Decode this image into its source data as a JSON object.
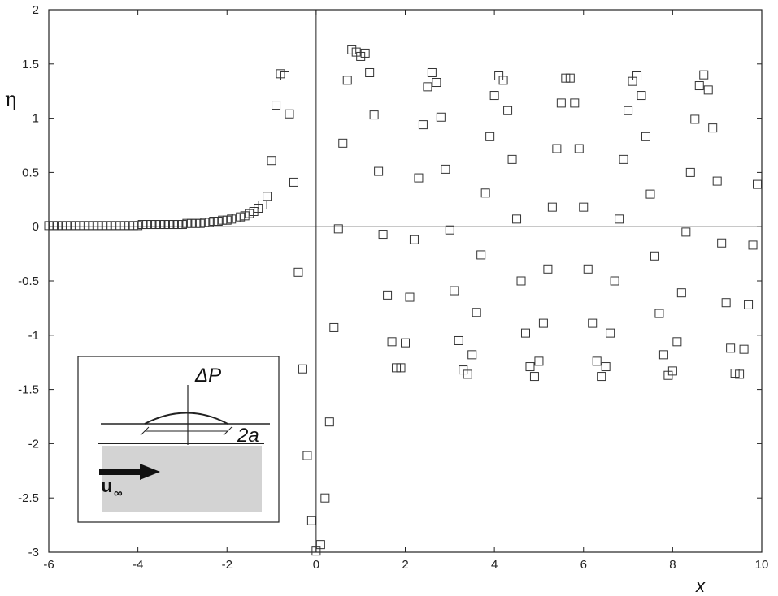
{
  "chart_data": {
    "type": "scatter",
    "xlabel": "x",
    "ylabel": "η",
    "xlim": [
      -6,
      10
    ],
    "ylim": [
      -3,
      2
    ],
    "xticks": [
      -6,
      -4,
      -2,
      0,
      2,
      4,
      6,
      8,
      10
    ],
    "yticks": [
      -3,
      -2.5,
      -2,
      -1.5,
      -1,
      -0.5,
      0,
      0.5,
      1,
      1.5,
      2
    ],
    "xtick_labels": [
      "-6",
      "-4",
      "-2",
      "0",
      "2",
      "4",
      "6",
      "8",
      "10"
    ],
    "ytick_labels": [
      "-3",
      "-2.5",
      "-2",
      "-1.5",
      "-1",
      "-0.5",
      "0",
      "0.5",
      "1",
      "1.5",
      "2"
    ],
    "grid": false,
    "reference_lines": {
      "x": 0,
      "y": 0
    },
    "marker": "square",
    "points": [
      [
        -6.0,
        0.01
      ],
      [
        -5.9,
        0.01
      ],
      [
        -5.8,
        0.01
      ],
      [
        -5.7,
        0.01
      ],
      [
        -5.6,
        0.01
      ],
      [
        -5.5,
        0.01
      ],
      [
        -5.4,
        0.01
      ],
      [
        -5.3,
        0.01
      ],
      [
        -5.2,
        0.01
      ],
      [
        -5.1,
        0.01
      ],
      [
        -5.0,
        0.01
      ],
      [
        -4.9,
        0.01
      ],
      [
        -4.8,
        0.01
      ],
      [
        -4.7,
        0.01
      ],
      [
        -4.6,
        0.01
      ],
      [
        -4.5,
        0.01
      ],
      [
        -4.4,
        0.01
      ],
      [
        -4.3,
        0.01
      ],
      [
        -4.2,
        0.01
      ],
      [
        -4.1,
        0.01
      ],
      [
        -4.0,
        0.01
      ],
      [
        -3.9,
        0.02
      ],
      [
        -3.8,
        0.02
      ],
      [
        -3.7,
        0.02
      ],
      [
        -3.6,
        0.02
      ],
      [
        -3.5,
        0.02
      ],
      [
        -3.4,
        0.02
      ],
      [
        -3.3,
        0.02
      ],
      [
        -3.2,
        0.02
      ],
      [
        -3.1,
        0.02
      ],
      [
        -3.0,
        0.02
      ],
      [
        -2.9,
        0.03
      ],
      [
        -2.8,
        0.03
      ],
      [
        -2.7,
        0.03
      ],
      [
        -2.6,
        0.03
      ],
      [
        -2.5,
        0.04
      ],
      [
        -2.4,
        0.04
      ],
      [
        -2.3,
        0.05
      ],
      [
        -2.2,
        0.05
      ],
      [
        -2.1,
        0.06
      ],
      [
        -2.0,
        0.06
      ],
      [
        -1.9,
        0.07
      ],
      [
        -1.8,
        0.08
      ],
      [
        -1.7,
        0.09
      ],
      [
        -1.6,
        0.1
      ],
      [
        -1.5,
        0.12
      ],
      [
        -1.4,
        0.14
      ],
      [
        -1.3,
        0.17
      ],
      [
        -1.2,
        0.2
      ],
      [
        -1.1,
        0.28
      ],
      [
        -1.0,
        0.61
      ],
      [
        -0.9,
        1.12
      ],
      [
        -0.8,
        1.41
      ],
      [
        -0.7,
        1.39
      ],
      [
        -0.6,
        1.04
      ],
      [
        -0.5,
        0.41
      ],
      [
        -0.4,
        -0.42
      ],
      [
        -0.3,
        -1.31
      ],
      [
        -0.2,
        -2.11
      ],
      [
        -0.1,
        -2.71
      ],
      [
        0.0,
        -2.99
      ],
      [
        0.1,
        -2.93
      ],
      [
        0.2,
        -2.5
      ],
      [
        0.3,
        -1.8
      ],
      [
        0.4,
        -0.93
      ],
      [
        0.5,
        -0.02
      ],
      [
        0.6,
        0.77
      ],
      [
        0.7,
        1.35
      ],
      [
        0.8,
        1.63
      ],
      [
        0.9,
        1.61
      ],
      [
        1.0,
        1.57
      ],
      [
        1.1,
        1.6
      ],
      [
        1.2,
        1.42
      ],
      [
        1.3,
        1.03
      ],
      [
        1.4,
        0.51
      ],
      [
        1.5,
        -0.07
      ],
      [
        1.6,
        -0.63
      ],
      [
        1.7,
        -1.06
      ],
      [
        1.8,
        -1.3
      ],
      [
        1.9,
        -1.3
      ],
      [
        2.0,
        -1.07
      ],
      [
        2.1,
        -0.65
      ],
      [
        2.2,
        -0.12
      ],
      [
        2.3,
        0.45
      ],
      [
        2.4,
        0.94
      ],
      [
        2.5,
        1.29
      ],
      [
        2.6,
        1.42
      ],
      [
        2.7,
        1.33
      ],
      [
        2.8,
        1.01
      ],
      [
        2.9,
        0.53
      ],
      [
        3.0,
        -0.03
      ],
      [
        3.1,
        -0.59
      ],
      [
        3.2,
        -1.05
      ],
      [
        3.3,
        -1.32
      ],
      [
        3.4,
        -1.36
      ],
      [
        3.5,
        -1.18
      ],
      [
        3.6,
        -0.79
      ],
      [
        3.7,
        -0.26
      ],
      [
        3.8,
        0.31
      ],
      [
        3.9,
        0.83
      ],
      [
        4.0,
        1.21
      ],
      [
        4.1,
        1.39
      ],
      [
        4.2,
        1.35
      ],
      [
        4.3,
        1.07
      ],
      [
        4.4,
        0.62
      ],
      [
        4.5,
        0.07
      ],
      [
        4.6,
        -0.5
      ],
      [
        4.7,
        -0.98
      ],
      [
        4.8,
        -1.29
      ],
      [
        4.9,
        -1.38
      ],
      [
        5.0,
        -1.24
      ],
      [
        5.1,
        -0.89
      ],
      [
        5.2,
        -0.39
      ],
      [
        5.3,
        0.18
      ],
      [
        5.4,
        0.72
      ],
      [
        5.5,
        1.14
      ],
      [
        5.6,
        1.37
      ],
      [
        5.7,
        1.37
      ],
      [
        5.8,
        1.14
      ],
      [
        5.9,
        0.72
      ],
      [
        6.0,
        0.18
      ],
      [
        6.1,
        -0.39
      ],
      [
        6.2,
        -0.89
      ],
      [
        6.3,
        -1.24
      ],
      [
        6.4,
        -1.38
      ],
      [
        6.5,
        -1.29
      ],
      [
        6.6,
        -0.98
      ],
      [
        6.7,
        -0.5
      ],
      [
        6.8,
        0.07
      ],
      [
        6.9,
        0.62
      ],
      [
        7.0,
        1.07
      ],
      [
        7.1,
        1.34
      ],
      [
        7.2,
        1.39
      ],
      [
        7.3,
        1.21
      ],
      [
        7.4,
        0.83
      ],
      [
        7.5,
        0.3
      ],
      [
        7.6,
        -0.27
      ],
      [
        7.7,
        -0.8
      ],
      [
        7.8,
        -1.18
      ],
      [
        7.9,
        -1.37
      ],
      [
        8.0,
        -1.33
      ],
      [
        8.1,
        -1.06
      ],
      [
        8.2,
        -0.61
      ],
      [
        8.3,
        -0.05
      ],
      [
        8.4,
        0.5
      ],
      [
        8.5,
        0.99
      ],
      [
        8.6,
        1.3
      ],
      [
        8.7,
        1.4
      ],
      [
        8.8,
        1.26
      ],
      [
        8.9,
        0.91
      ],
      [
        9.0,
        0.42
      ],
      [
        9.1,
        -0.15
      ],
      [
        9.2,
        -0.7
      ],
      [
        9.3,
        -1.12
      ],
      [
        9.4,
        -1.35
      ],
      [
        9.5,
        -1.36
      ],
      [
        9.6,
        -1.13
      ],
      [
        9.7,
        -0.72
      ],
      [
        9.8,
        -0.17
      ],
      [
        9.9,
        0.39
      ]
    ]
  },
  "inset": {
    "pressure_label": "ΔP",
    "width_label": "2a",
    "velocity_label": "u",
    "velocity_sub": "∞"
  }
}
